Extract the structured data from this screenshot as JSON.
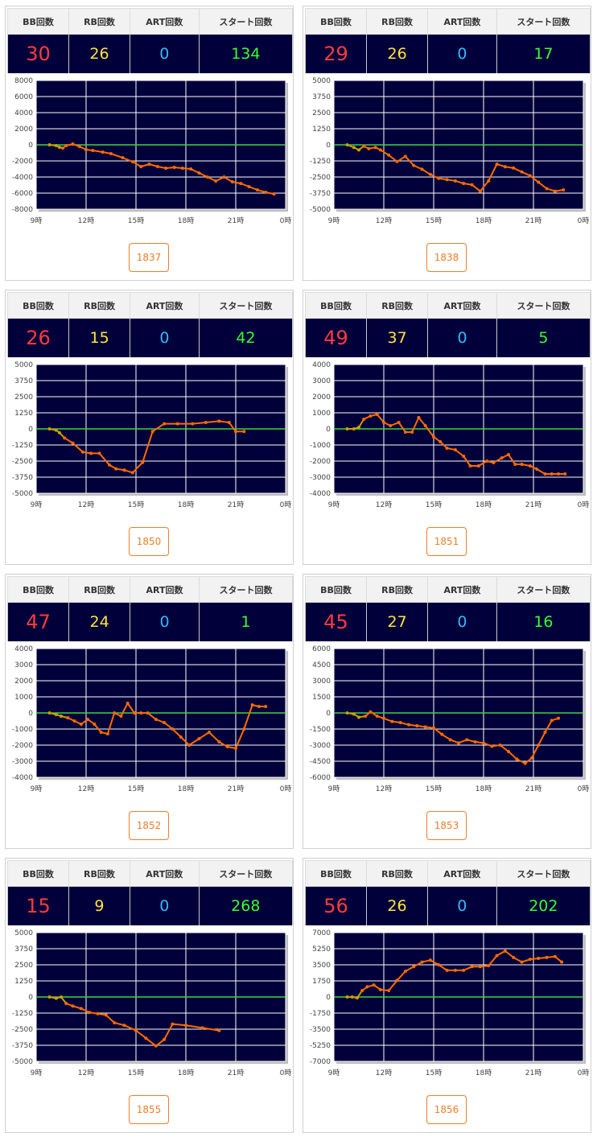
{
  "headers": {
    "bb": "BB回数",
    "rb": "RB回数",
    "art": "ART回数",
    "start": "スタート回数"
  },
  "colors": {
    "plot_bg": "#02003a",
    "grid": "#ffffff",
    "zero_line": "#3fd23f",
    "series": "#ff6a00",
    "early_series": "#c8a000",
    "bb": "#ff3b3b",
    "rb": "#ffe53a",
    "art": "#35b8ff",
    "start": "#37ff2e",
    "button": "#f07d2a"
  },
  "cards": [
    {
      "bb": "30",
      "rb": "26",
      "art": "0",
      "start": "134",
      "machine": "1837",
      "chart_data": {
        "type": "line",
        "x_unit": "hour",
        "x_ticks": [
          "9時",
          "12時",
          "15時",
          "18時",
          "21時",
          "0時"
        ],
        "y_ticks": [
          "8000",
          "6000",
          "4000",
          "2000",
          "0",
          "-2000",
          "-4000",
          "-6000",
          "-8000"
        ],
        "ylim": [
          -8000,
          8000
        ],
        "xlim": [
          9,
          24
        ],
        "x": [
          9.8,
          10.2,
          10.4,
          10.6,
          10.8,
          11.2,
          11.6,
          12.0,
          12.4,
          13.0,
          13.5,
          14.2,
          14.8,
          15.3,
          15.8,
          16.3,
          16.8,
          17.3,
          17.8,
          18.3,
          18.8,
          19.3,
          19.8,
          20.3,
          20.8,
          21.3,
          21.8,
          22.3,
          22.8,
          23.3
        ],
        "y": [
          0,
          -100,
          -300,
          -400,
          -100,
          100,
          -200,
          -600,
          -700,
          -900,
          -1100,
          -1600,
          -2100,
          -2700,
          -2400,
          -2700,
          -2900,
          -2800,
          -2900,
          -3000,
          -3500,
          -4000,
          -4500,
          -4000,
          -4600,
          -4800,
          -5200,
          -5600,
          -5900,
          -6100
        ]
      }
    },
    {
      "bb": "29",
      "rb": "26",
      "art": "0",
      "start": "17",
      "machine": "1838",
      "chart_data": {
        "type": "line",
        "x_unit": "hour",
        "x_ticks": [
          "9時",
          "12時",
          "15時",
          "18時",
          "21時",
          "0時"
        ],
        "y_ticks": [
          "5000",
          "3750",
          "2500",
          "1250",
          "0",
          "-1250",
          "-2500",
          "-3750",
          "-5000"
        ],
        "ylim": [
          -5000,
          5000
        ],
        "xlim": [
          9,
          24
        ],
        "x": [
          9.8,
          10.2,
          10.5,
          10.8,
          11.1,
          11.5,
          11.8,
          12.3,
          12.8,
          13.3,
          13.8,
          14.3,
          14.8,
          15.3,
          15.8,
          16.3,
          16.8,
          17.3,
          17.8,
          18.3,
          18.8,
          19.3,
          19.8,
          20.3,
          20.8,
          21.3,
          21.8,
          22.3,
          22.8
        ],
        "y": [
          0,
          -200,
          -400,
          -100,
          -300,
          -200,
          -400,
          -800,
          -1300,
          -900,
          -1600,
          -1900,
          -2300,
          -2600,
          -2700,
          -2800,
          -3000,
          -3100,
          -3600,
          -2800,
          -1500,
          -1700,
          -1800,
          -2100,
          -2400,
          -2900,
          -3400,
          -3600,
          -3500
        ]
      }
    },
    {
      "bb": "26",
      "rb": "15",
      "art": "0",
      "start": "42",
      "machine": "1850",
      "chart_data": {
        "type": "line",
        "x_unit": "hour",
        "x_ticks": [
          "9時",
          "12時",
          "15時",
          "18時",
          "21時",
          "0時"
        ],
        "y_ticks": [
          "5000",
          "3750",
          "2500",
          "1250",
          "0",
          "-1250",
          "-2500",
          "-3750",
          "-5000"
        ],
        "ylim": [
          -5000,
          5000
        ],
        "xlim": [
          9,
          24
        ],
        "x": [
          9.8,
          10.2,
          10.4,
          10.7,
          11.2,
          11.8,
          12.3,
          12.8,
          13.4,
          13.8,
          14.3,
          14.8,
          15.4,
          16.0,
          16.7,
          17.5,
          18.4,
          19.2,
          20.0,
          20.6,
          21.0,
          21.5
        ],
        "y": [
          0,
          -100,
          -300,
          -700,
          -1100,
          -1800,
          -1900,
          -1900,
          -2800,
          -3100,
          -3200,
          -3400,
          -2600,
          -200,
          400,
          400,
          400,
          500,
          600,
          500,
          -200,
          -200
        ]
      }
    },
    {
      "bb": "49",
      "rb": "37",
      "art": "0",
      "start": "5",
      "machine": "1851",
      "chart_data": {
        "type": "line",
        "x_unit": "hour",
        "x_ticks": [
          "9時",
          "12時",
          "15時",
          "18時",
          "21時",
          "0時"
        ],
        "y_ticks": [
          "4000",
          "3000",
          "2000",
          "1000",
          "0",
          "-1000",
          "-2000",
          "-3000",
          "-4000"
        ],
        "ylim": [
          -4000,
          4000
        ],
        "xlim": [
          9,
          24
        ],
        "x": [
          9.8,
          10.2,
          10.5,
          10.8,
          11.2,
          11.6,
          12.0,
          12.4,
          12.9,
          13.3,
          13.7,
          14.1,
          14.5,
          15.0,
          15.4,
          15.8,
          16.3,
          16.8,
          17.2,
          17.7,
          18.2,
          18.6,
          19.1,
          19.5,
          19.9,
          20.3,
          20.8,
          21.2,
          21.7,
          22.1,
          22.5,
          22.9
        ],
        "y": [
          0,
          0,
          100,
          600,
          800,
          900,
          400,
          200,
          400,
          -200,
          -200,
          700,
          200,
          -500,
          -800,
          -1200,
          -1300,
          -1700,
          -2300,
          -2300,
          -2000,
          -2100,
          -1800,
          -1600,
          -2200,
          -2200,
          -2300,
          -2500,
          -2800,
          -2800,
          -2800,
          -2800
        ]
      }
    },
    {
      "bb": "47",
      "rb": "24",
      "art": "0",
      "start": "1",
      "machine": "1852",
      "chart_data": {
        "type": "line",
        "x_unit": "hour",
        "x_ticks": [
          "9時",
          "12時",
          "15時",
          "18時",
          "21時",
          "0時"
        ],
        "y_ticks": [
          "4000",
          "3000",
          "2000",
          "1000",
          "0",
          "-1000",
          "-2000",
          "-3000",
          "-4000"
        ],
        "ylim": [
          -4000,
          4000
        ],
        "xlim": [
          9,
          24
        ],
        "x": [
          9.8,
          10.2,
          10.5,
          10.9,
          11.3,
          11.7,
          12.1,
          12.5,
          12.9,
          13.3,
          13.7,
          14.1,
          14.5,
          14.9,
          15.3,
          15.7,
          16.2,
          16.7,
          17.2,
          17.7,
          18.2,
          18.8,
          19.4,
          20.0,
          20.5,
          21.0,
          21.5,
          22.0,
          22.4,
          22.8
        ],
        "y": [
          0,
          -100,
          -200,
          -300,
          -500,
          -700,
          -400,
          -700,
          -1200,
          -1300,
          0,
          -200,
          600,
          0,
          0,
          0,
          -400,
          -600,
          -1000,
          -1500,
          -2000,
          -1600,
          -1200,
          -1800,
          -2100,
          -2200,
          -1000,
          500,
          400,
          400
        ]
      }
    },
    {
      "bb": "45",
      "rb": "27",
      "art": "0",
      "start": "16",
      "machine": "1853",
      "chart_data": {
        "type": "line",
        "x_unit": "hour",
        "x_ticks": [
          "9時",
          "12時",
          "15時",
          "18時",
          "21時",
          "0時"
        ],
        "y_ticks": [
          "6000",
          "4500",
          "3000",
          "1500",
          "0",
          "-1500",
          "-3000",
          "-4500",
          "-6000"
        ],
        "ylim": [
          -6000,
          6000
        ],
        "xlim": [
          9,
          24
        ],
        "x": [
          9.8,
          10.2,
          10.5,
          10.9,
          11.2,
          11.6,
          12.0,
          12.5,
          13.0,
          13.5,
          14.0,
          14.5,
          15.0,
          15.5,
          16.0,
          16.5,
          17.0,
          17.5,
          18.0,
          18.5,
          19.0,
          19.5,
          20.0,
          20.5,
          20.9,
          21.3,
          21.7,
          22.1,
          22.5
        ],
        "y": [
          0,
          -100,
          -400,
          -300,
          100,
          -300,
          -500,
          -800,
          -900,
          -1100,
          -1200,
          -1300,
          -1400,
          -2000,
          -2500,
          -2800,
          -2500,
          -2700,
          -2800,
          -3100,
          -3000,
          -3600,
          -4300,
          -4700,
          -4200,
          -3000,
          -1800,
          -700,
          -500
        ]
      }
    },
    {
      "bb": "15",
      "rb": "9",
      "art": "0",
      "start": "268",
      "machine": "1855",
      "chart_data": {
        "type": "line",
        "x_unit": "hour",
        "x_ticks": [
          "9時",
          "12時",
          "15時",
          "18時",
          "21時",
          "0時"
        ],
        "y_ticks": [
          "5000",
          "3750",
          "2500",
          "1250",
          "0",
          "-1250",
          "-2500",
          "-3750",
          "-5000"
        ],
        "ylim": [
          -5000,
          5000
        ],
        "xlim": [
          9,
          24
        ],
        "x": [
          9.8,
          10.2,
          10.5,
          10.8,
          11.2,
          11.7,
          12.2,
          12.7,
          13.2,
          13.7,
          14.3,
          15.0,
          15.6,
          16.2,
          16.7,
          17.2,
          18.0,
          19.0,
          20.0
        ],
        "y": [
          0,
          -100,
          0,
          -500,
          -700,
          -900,
          -1200,
          -1300,
          -1400,
          -2000,
          -2200,
          -2600,
          -3200,
          -3800,
          -3300,
          -2100,
          -2200,
          -2400,
          -2600
        ]
      }
    },
    {
      "bb": "56",
      "rb": "26",
      "art": "0",
      "start": "202",
      "machine": "1856",
      "chart_data": {
        "type": "line",
        "x_unit": "hour",
        "x_ticks": [
          "9時",
          "12時",
          "15時",
          "18時",
          "21時",
          "0時"
        ],
        "y_ticks": [
          "7000",
          "5250",
          "3500",
          "1750",
          "0",
          "-1750",
          "-3500",
          "-5250",
          "-7000"
        ],
        "ylim": [
          -7000,
          7000
        ],
        "xlim": [
          9,
          24
        ],
        "x": [
          9.8,
          10.1,
          10.4,
          10.7,
          11.0,
          11.4,
          11.8,
          12.3,
          12.8,
          13.3,
          13.8,
          14.3,
          14.8,
          15.3,
          15.8,
          16.3,
          16.8,
          17.3,
          17.8,
          18.3,
          18.8,
          19.3,
          19.8,
          20.3,
          20.8,
          21.3,
          21.8,
          22.3,
          22.7
        ],
        "y": [
          0,
          0,
          -100,
          700,
          1100,
          1300,
          800,
          700,
          1800,
          2800,
          3300,
          3800,
          4000,
          3500,
          2900,
          2900,
          2900,
          3300,
          3300,
          3400,
          4500,
          5000,
          4300,
          3800,
          4100,
          4200,
          4300,
          4400,
          3800
        ]
      }
    }
  ]
}
